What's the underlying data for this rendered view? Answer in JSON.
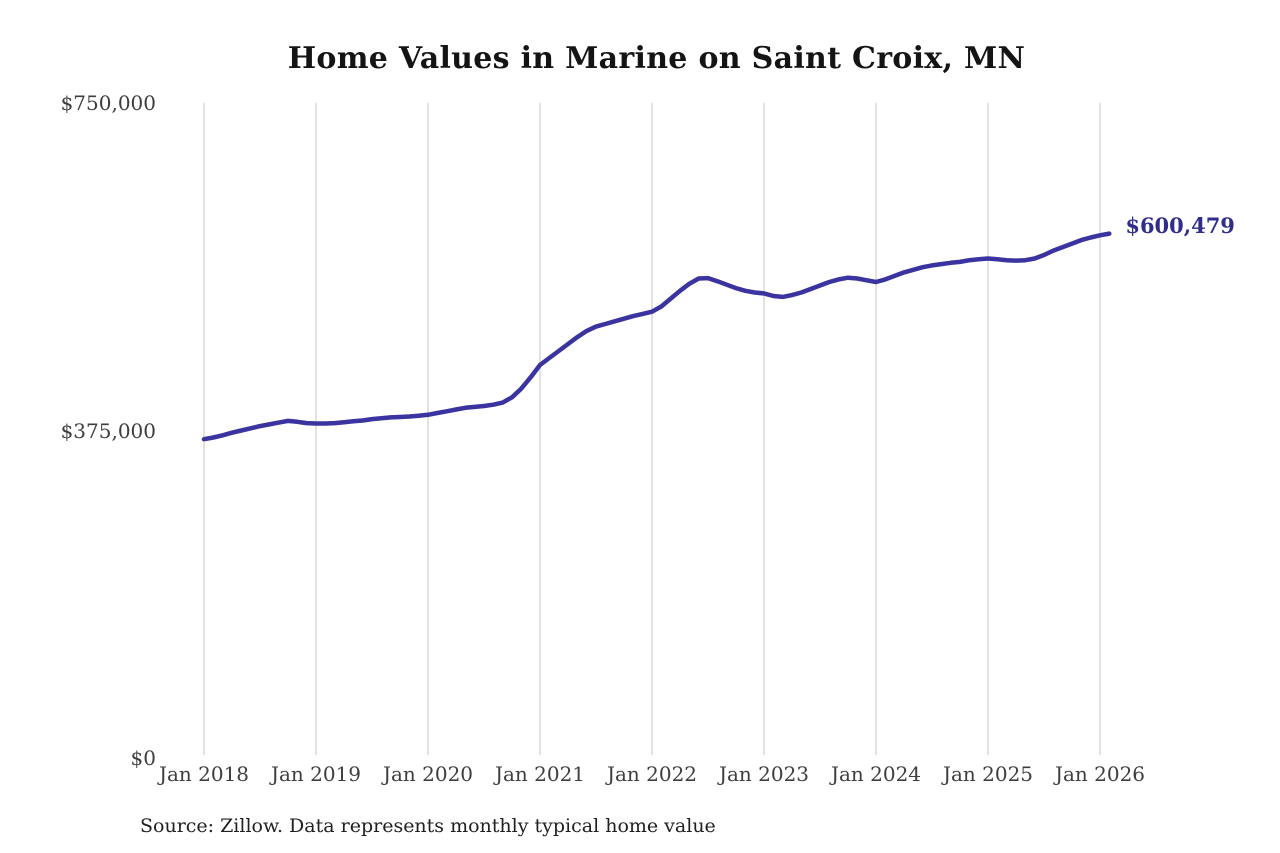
{
  "chart": {
    "title": "Home Values in Marine on Saint Croix, MN",
    "end_label": "$600,479",
    "source": "Source: Zillow. Data represents monthly typical home value",
    "colors": {
      "line": "#3b34a0",
      "end_label": "#302d8c",
      "gridline": "#d2d2d2",
      "tick_text": "#3e3e3e",
      "title_text": "#141414",
      "source_text": "#202020",
      "background": "#ffffff"
    }
  },
  "chart_data": {
    "type": "line",
    "title": "Home Values in Marine on Saint Croix, MN",
    "xlabel": "",
    "ylabel": "",
    "ylim": [
      0,
      750000
    ],
    "y_ticks": [
      0,
      375000,
      750000
    ],
    "y_tick_labels": [
      "$0",
      "$375,000",
      "$750,000"
    ],
    "x_tick_labels": [
      "Jan 2018",
      "Jan 2019",
      "Jan 2020",
      "Jan 2021",
      "Jan 2022",
      "Jan 2023",
      "Jan 2024",
      "Jan 2025",
      "Jan 2026"
    ],
    "x_start": "2018-01",
    "x_end": "2026-02",
    "x_frequency": "monthly",
    "grid": "vertical-only",
    "legend": "none",
    "last_point": {
      "x": "2026-02",
      "y": 600479,
      "label": "$600,479"
    },
    "series": [
      {
        "name": "Monthly typical home value",
        "unit": "USD",
        "monthly_values": [
          365000,
          367000,
          369500,
          372500,
          375000,
          377500,
          380000,
          382000,
          384000,
          386000,
          385000,
          383500,
          383000,
          383000,
          383500,
          384500,
          385500,
          386500,
          388000,
          389000,
          390000,
          390500,
          391000,
          392000,
          393000,
          395000,
          397000,
          399000,
          401000,
          402000,
          403000,
          404500,
          407000,
          413000,
          423000,
          436000,
          450000,
          458000,
          466000,
          474000,
          482000,
          489000,
          494000,
          497000,
          500000,
          503000,
          506000,
          508500,
          511000,
          517000,
          526000,
          535000,
          543000,
          549000,
          549500,
          546000,
          542000,
          538000,
          535000,
          533000,
          532000,
          529000,
          528000,
          530000,
          533000,
          537000,
          541000,
          545000,
          548000,
          550000,
          549000,
          547000,
          545000,
          548000,
          552000,
          556000,
          559000,
          562000,
          564000,
          565500,
          567000,
          568000,
          570000,
          571000,
          572000,
          571000,
          570000,
          569500,
          570000,
          572000,
          576000,
          581000,
          585000,
          589000,
          593000,
          596000,
          598500,
          600479
        ]
      }
    ]
  }
}
